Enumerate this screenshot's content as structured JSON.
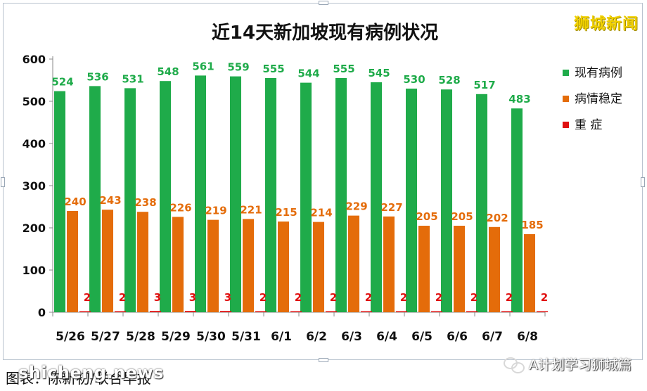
{
  "watermark": "狮城新闻",
  "caption": "图表：陈新初/联合早报",
  "site": "shicheng.news",
  "account": "A计划学习狮城篇",
  "chart_data": {
    "type": "bar",
    "title": "近14天新加坡现有病例状况",
    "categories": [
      "5/26",
      "5/27",
      "5/28",
      "5/29",
      "5/30",
      "5/31",
      "6/1",
      "6/2",
      "6/3",
      "6/4",
      "6/5",
      "6/6",
      "6/7",
      "6/8"
    ],
    "series": [
      {
        "name": "现有病例",
        "color": "#1fab4a",
        "values": [
          524,
          536,
          531,
          548,
          561,
          559,
          555,
          544,
          555,
          545,
          530,
          528,
          517,
          483
        ]
      },
      {
        "name": "病情稳定",
        "color": "#e46c0a",
        "values": [
          240,
          243,
          238,
          226,
          219,
          221,
          215,
          214,
          229,
          227,
          205,
          205,
          202,
          185
        ]
      },
      {
        "name": "重  症",
        "color": "#e01010",
        "values": [
          2,
          2,
          3,
          3,
          3,
          2,
          2,
          2,
          2,
          2,
          2,
          2,
          2,
          2
        ]
      }
    ],
    "yticks": [
      0,
      100,
      200,
      300,
      400,
      500,
      600
    ],
    "ylim": [
      0,
      600
    ],
    "legend_position": "right",
    "grid": false,
    "data_label_colors": [
      "#1fab4a",
      "#e46c0a",
      "#e01010"
    ]
  }
}
